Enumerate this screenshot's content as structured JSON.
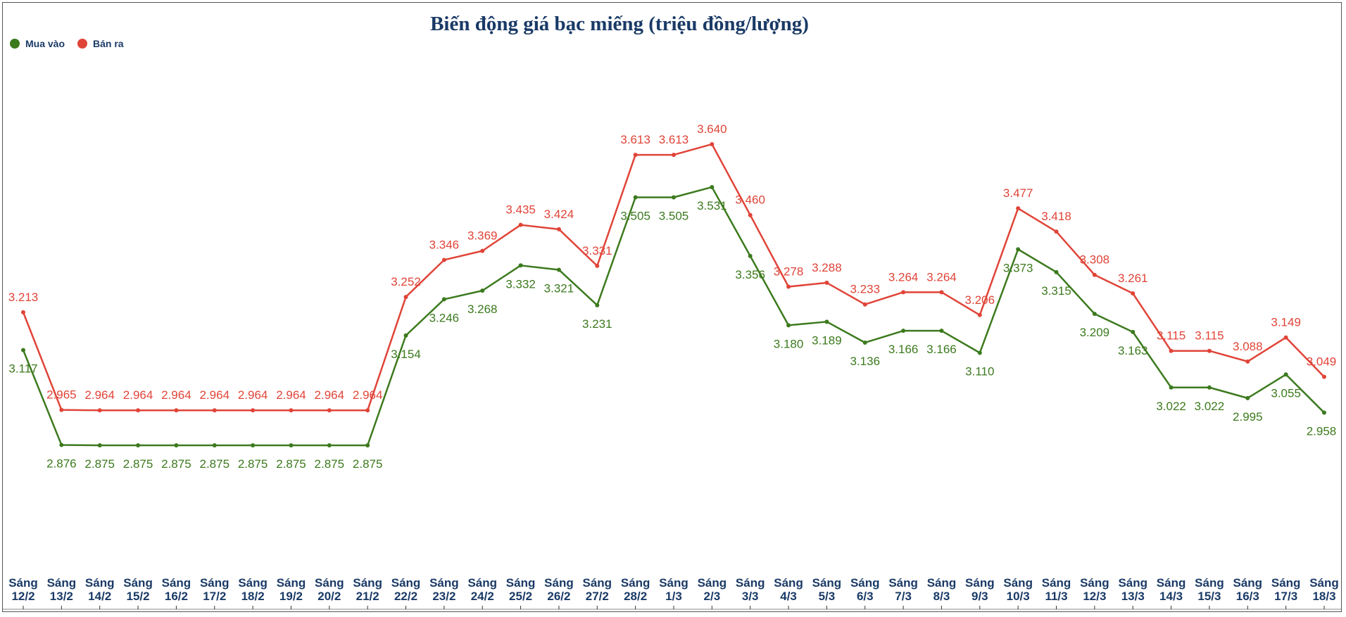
{
  "chart_data": {
    "type": "line",
    "title": "Biến động giá bạc miếng (triệu đồng/lượng)",
    "xlabel": "",
    "ylabel": "",
    "legend_position": "top-left",
    "grid": false,
    "categories": [
      [
        "Sáng",
        "12/2"
      ],
      [
        "Sáng",
        "13/2"
      ],
      [
        "Sáng",
        "14/2"
      ],
      [
        "Sáng",
        "15/2"
      ],
      [
        "Sáng",
        "16/2"
      ],
      [
        "Sáng",
        "17/2"
      ],
      [
        "Sáng",
        "18/2"
      ],
      [
        "Sáng",
        "19/2"
      ],
      [
        "Sáng",
        "20/2"
      ],
      [
        "Sáng",
        "21/2"
      ],
      [
        "Sáng",
        "22/2"
      ],
      [
        "Sáng",
        "23/2"
      ],
      [
        "Sáng",
        "24/2"
      ],
      [
        "Sáng",
        "25/2"
      ],
      [
        "Sáng",
        "26/2"
      ],
      [
        "Sáng",
        "27/2"
      ],
      [
        "Sáng",
        "28/2"
      ],
      [
        "Sáng",
        "1/3"
      ],
      [
        "Sáng",
        "2/3"
      ],
      [
        "Sáng",
        "3/3"
      ],
      [
        "Sáng",
        "4/3"
      ],
      [
        "Sáng",
        "5/3"
      ],
      [
        "Sáng",
        "6/3"
      ],
      [
        "Sáng",
        "7/3"
      ],
      [
        "Sáng",
        "8/3"
      ],
      [
        "Sáng",
        "9/3"
      ],
      [
        "Sáng",
        "10/3"
      ],
      [
        "Sáng",
        "11/3"
      ],
      [
        "Sáng",
        "12/3"
      ],
      [
        "Sáng",
        "13/3"
      ],
      [
        "Sáng",
        "14/3"
      ],
      [
        "Sáng",
        "15/3"
      ],
      [
        "Sáng",
        "16/3"
      ],
      [
        "Sáng",
        "17/3"
      ],
      [
        "Sáng",
        "18/3"
      ]
    ],
    "series": [
      {
        "name": "Mua vào",
        "color": "#3c7a1e",
        "values": [
          3.117,
          2.876,
          2.875,
          2.875,
          2.875,
          2.875,
          2.875,
          2.875,
          2.875,
          2.875,
          3.154,
          3.246,
          3.268,
          3.332,
          3.321,
          3.231,
          3.505,
          3.505,
          3.531,
          3.356,
          3.18,
          3.189,
          3.136,
          3.166,
          3.166,
          3.11,
          3.373,
          3.315,
          3.209,
          3.163,
          3.022,
          3.022,
          2.995,
          3.055,
          2.958
        ]
      },
      {
        "name": "Bán ra",
        "color": "#e04438",
        "values": [
          3.213,
          2.965,
          2.964,
          2.964,
          2.964,
          2.964,
          2.964,
          2.964,
          2.964,
          2.964,
          3.252,
          3.346,
          3.369,
          3.435,
          3.424,
          3.331,
          3.613,
          3.613,
          3.64,
          3.46,
          3.278,
          3.288,
          3.233,
          3.264,
          3.264,
          3.206,
          3.477,
          3.418,
          3.308,
          3.261,
          3.115,
          3.115,
          3.088,
          3.149,
          3.049
        ]
      }
    ]
  }
}
